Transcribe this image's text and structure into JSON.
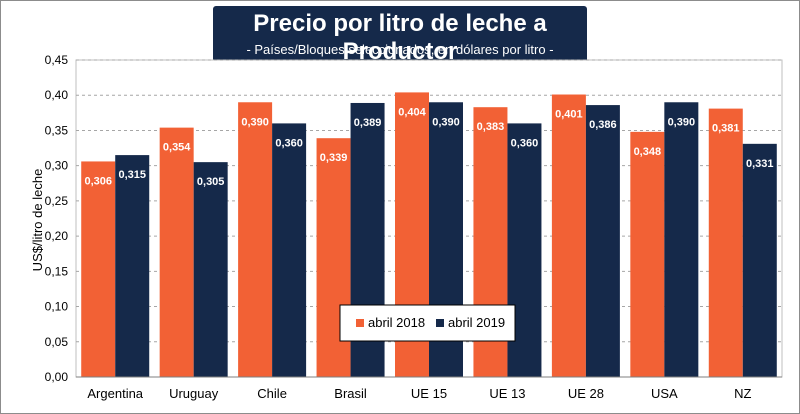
{
  "chart_data": {
    "type": "bar",
    "title": "Precio por litro de leche a Productor",
    "subtitle": "- Países/Bloques seleccionados, en dólares por litro -",
    "xlabel": "",
    "ylabel": "US$/litro de leche",
    "ylim": [
      0,
      0.45
    ],
    "yticks": [
      "0,00",
      "0,05",
      "0,10",
      "0,15",
      "0,20",
      "0,25",
      "0,30",
      "0,35",
      "0,40",
      "0,45"
    ],
    "grid": true,
    "legend_position": "bottom-center",
    "categories": [
      "Argentina",
      "Uruguay",
      "Chile",
      "Brasil",
      "UE 15",
      "UE 13",
      "UE 28",
      "USA",
      "NZ"
    ],
    "series": [
      {
        "name": "abril 2018",
        "color": "#f26135",
        "values": [
          0.306,
          0.354,
          0.39,
          0.339,
          0.404,
          0.383,
          0.401,
          0.348,
          0.381
        ],
        "labels": [
          "0,306",
          "0,354",
          "0,390",
          "0,339",
          "0,404",
          "0,383",
          "0,401",
          "0,348",
          "0,381"
        ]
      },
      {
        "name": "abril 2019",
        "color": "#15294a",
        "values": [
          0.315,
          0.305,
          0.36,
          0.389,
          0.39,
          0.36,
          0.386,
          0.39,
          0.331
        ],
        "labels": [
          "0,315",
          "0,305",
          "0,360",
          "0,389",
          "0,390",
          "0,360",
          "0,386",
          "0,390",
          "0,331"
        ]
      }
    ]
  }
}
